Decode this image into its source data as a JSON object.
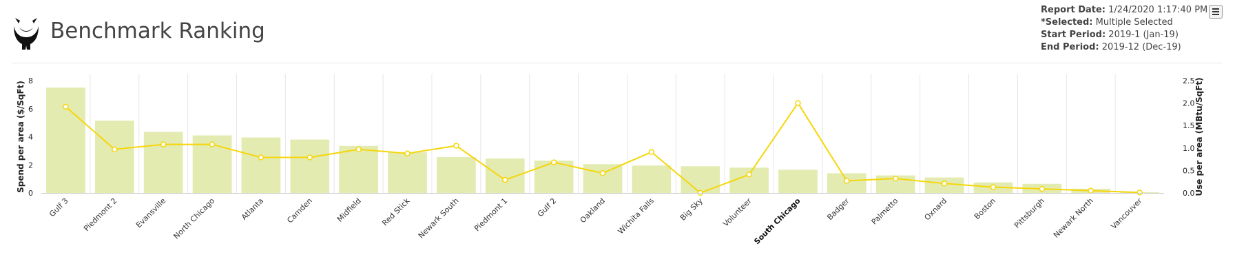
{
  "header": {
    "title": "Benchmark Ranking",
    "logo_icon": "bull-head-logo-icon",
    "menu_icon": "hamburger-menu-icon",
    "report": {
      "date_label": "Report Date:",
      "date_value": "1/24/2020 1:17:40 PM",
      "selected_label": "*Selected:",
      "selected_value": "Multiple Selected",
      "start_label": "Start Period:",
      "start_value": "2019-1 (Jan-19)",
      "end_label": "End Period:",
      "end_value": "2019-12 (Dec-19)"
    }
  },
  "chart_data": {
    "type": "bar",
    "categories": [
      "Gulf 3",
      "Piedmont 2",
      "Evansville",
      "North Chicago",
      "Atlanta",
      "Camden",
      "Midfield",
      "Red Stick",
      "Newark South",
      "Piedmont 1",
      "Gulf 2",
      "Oakland",
      "Wichita Falls",
      "Big Sky",
      "Volunteer",
      "South Chicago",
      "Badger",
      "Palmetto",
      "Oxnard",
      "Boston",
      "Pittsburgh",
      "Newark North",
      "Vancouver"
    ],
    "highlighted_category": "South Chicago",
    "series": [
      {
        "kind": "bar",
        "axis": "left",
        "color": "#e3ebb1",
        "values": [
          7.5,
          5.15,
          4.35,
          4.1,
          3.95,
          3.8,
          3.35,
          2.9,
          2.55,
          2.45,
          2.3,
          2.05,
          1.95,
          1.9,
          1.8,
          1.65,
          1.4,
          1.25,
          1.1,
          0.75,
          0.65,
          0.3,
          0.05
        ]
      },
      {
        "kind": "line",
        "axis": "right",
        "color": "#f5d60a",
        "values": [
          1.92,
          0.97,
          1.08,
          1.08,
          0.79,
          0.79,
          0.97,
          0.88,
          1.05,
          0.29,
          0.68,
          0.44,
          0.91,
          0.0,
          0.41,
          2.0,
          0.27,
          0.32,
          0.21,
          0.13,
          0.09,
          0.05,
          0.01
        ]
      }
    ],
    "y_left": {
      "label": "Spend per area ($/SqFt)",
      "min": 0,
      "max": 8,
      "ticks": [
        0,
        2,
        4,
        6,
        8
      ]
    },
    "y_right": {
      "label": "Use per area (MBtu/SqFt)",
      "min": 0,
      "max": 2.5,
      "ticks": [
        "0.0",
        "0.5",
        "1.0",
        "1.5",
        "2.0",
        "2.5"
      ]
    },
    "grid": "vertical"
  }
}
